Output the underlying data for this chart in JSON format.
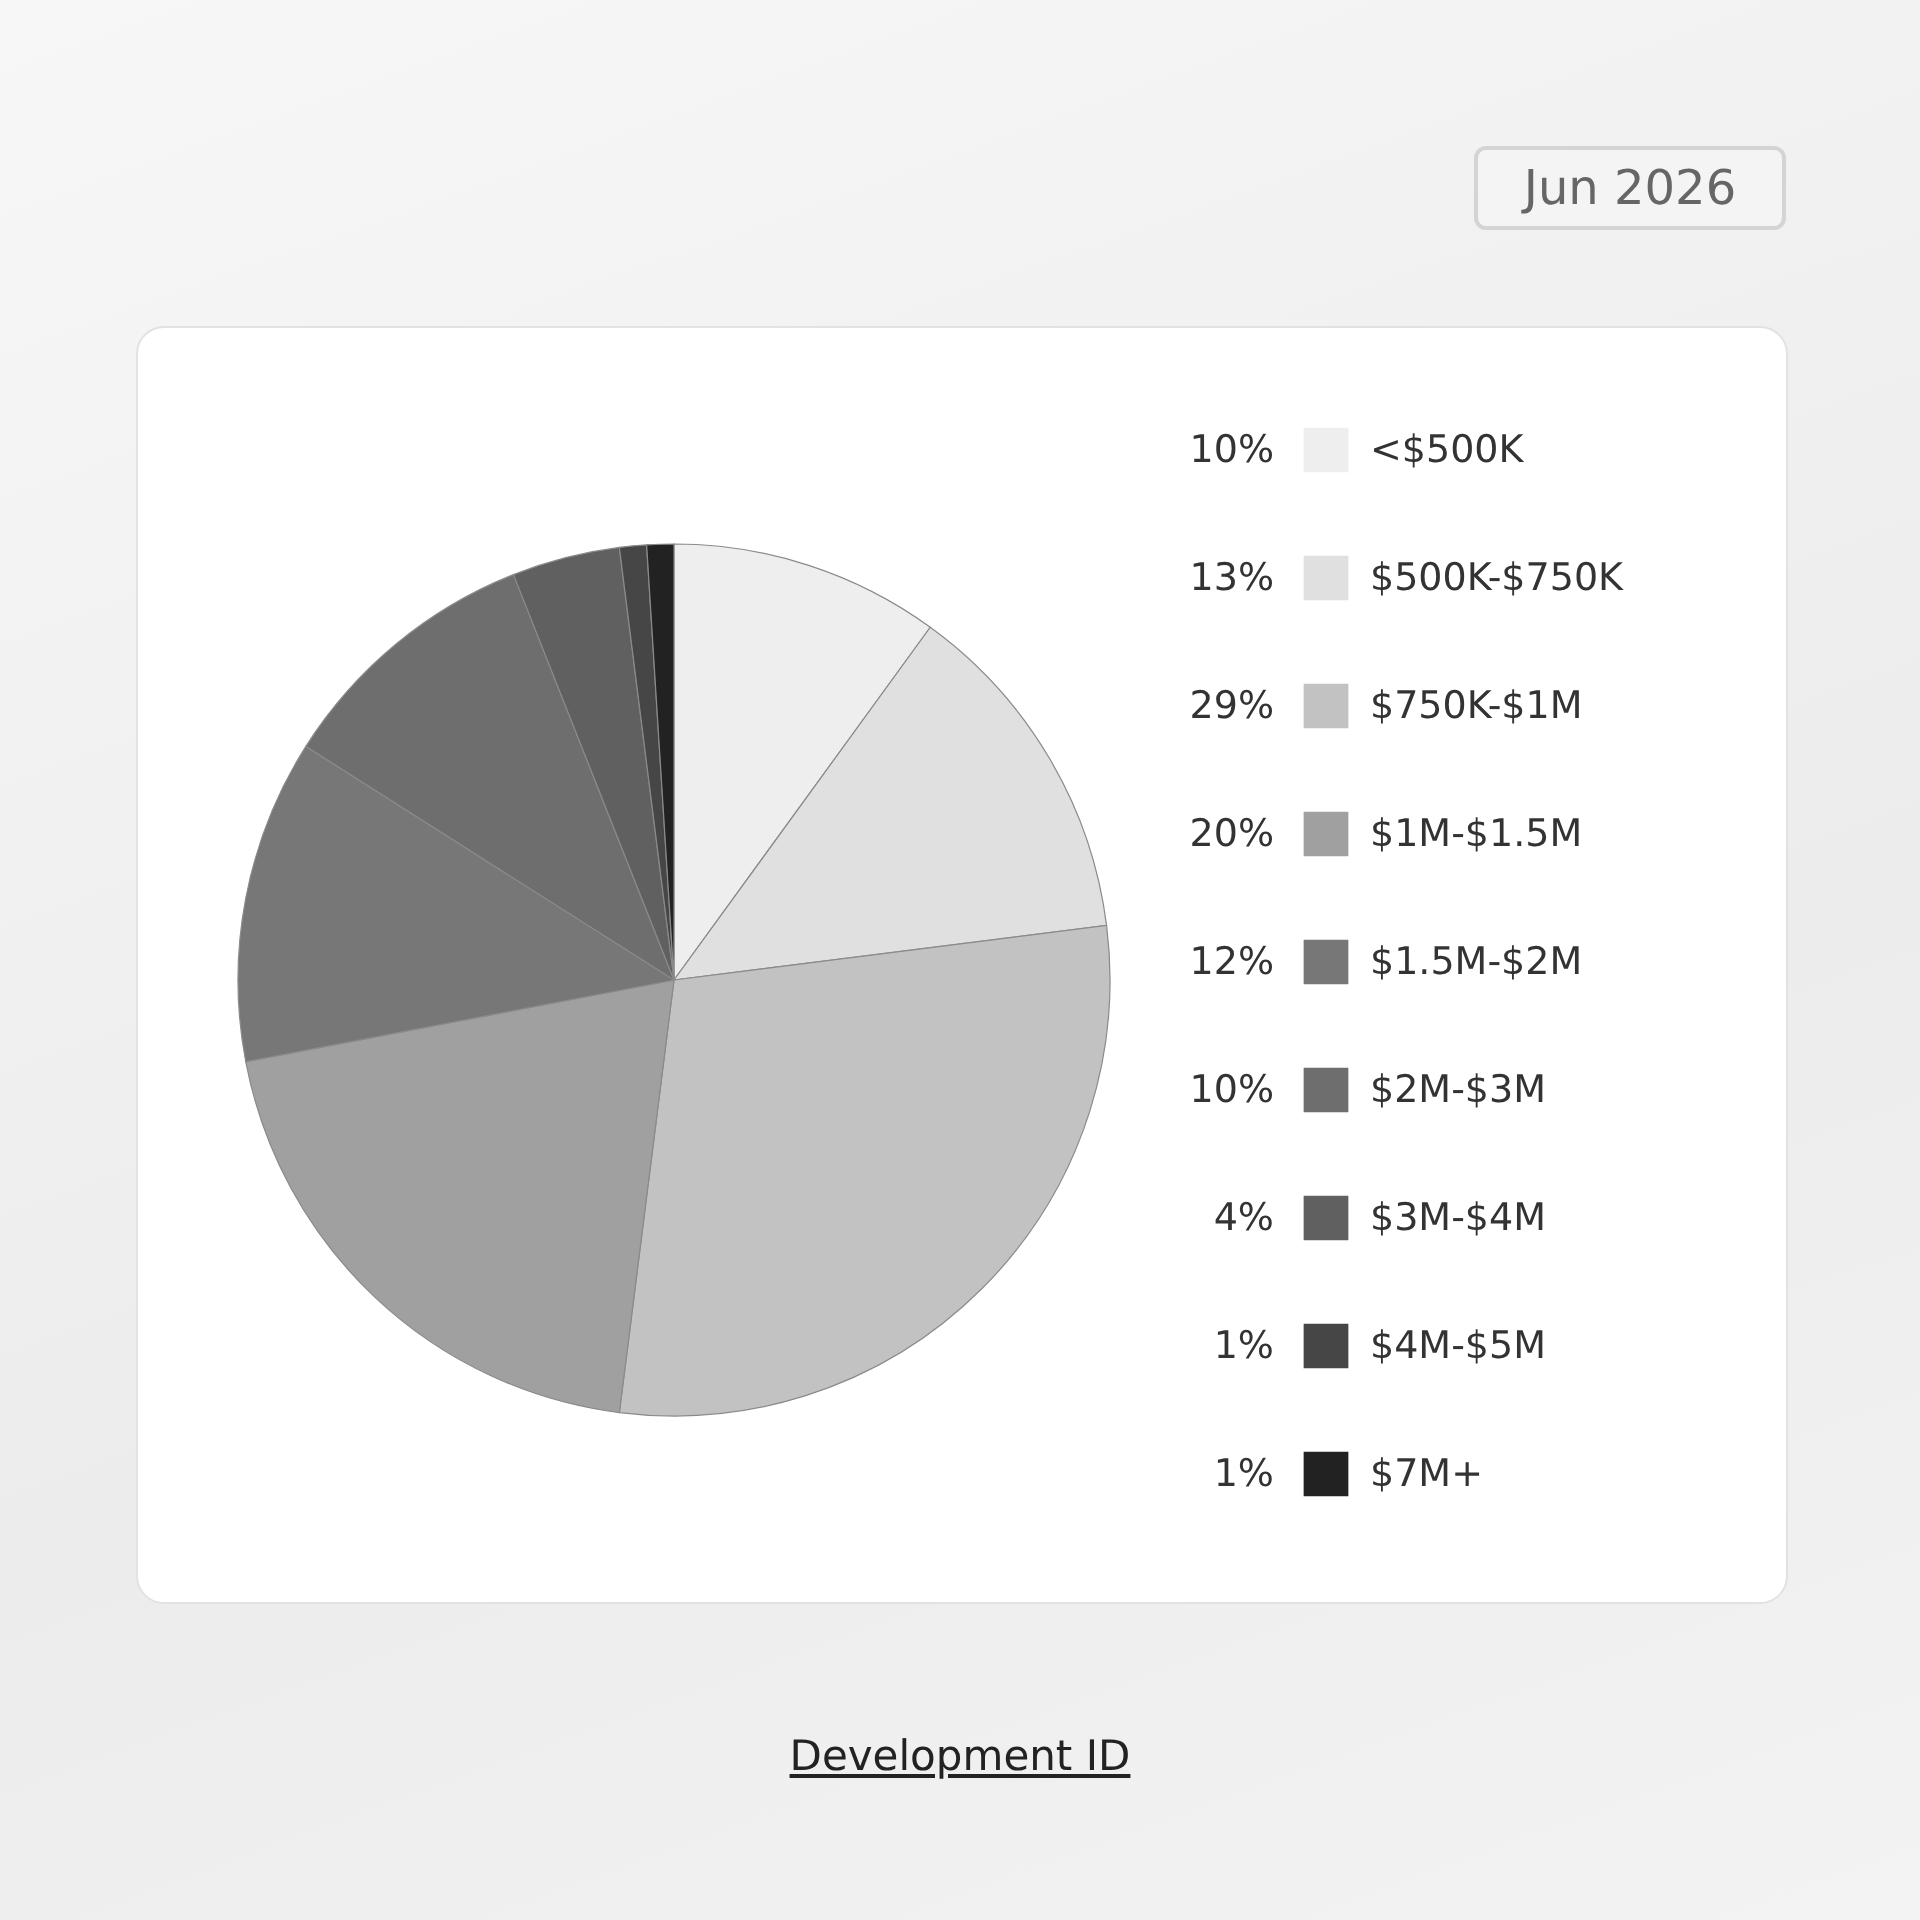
{
  "chart_data": {
    "type": "pie",
    "categories": [
      "<$500K",
      "$500K-$750K",
      "$750K-$1M",
      "$1M-$1.5M",
      "$1.5M-$2M",
      "$2M-$3M",
      "$3M-$4M",
      "$4M-$5M",
      "$7M+"
    ],
    "values": [
      10,
      13,
      29,
      20,
      12,
      10,
      4,
      1,
      1
    ],
    "value_labels": [
      "10%",
      "13%",
      "29%",
      "20%",
      "12%",
      "10%",
      "4%",
      "1%",
      "1%"
    ],
    "colors": [
      "#eeeeee",
      "#e0e0e0",
      "#c2c2c2",
      "#a0a0a0",
      "#777777",
      "#6e6e6e",
      "#606060",
      "#464646",
      "#222222"
    ],
    "legend": "right",
    "annotations": [
      "Jun 2026",
      "Development ID"
    ]
  }
}
